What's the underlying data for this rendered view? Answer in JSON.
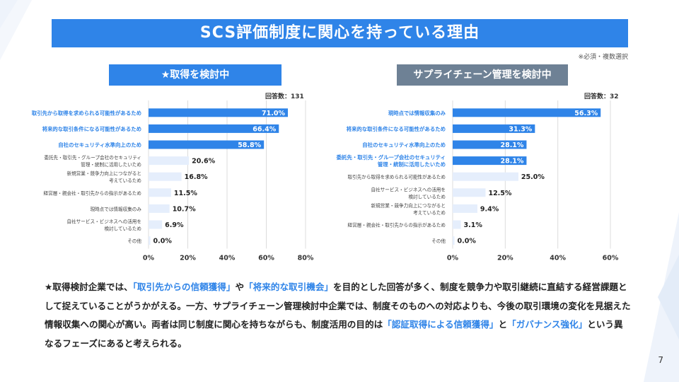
{
  "title": "SCS評価制度に関心を持っている理由",
  "note": "※必須・複数選択",
  "page_number": "7",
  "colors": {
    "accent": "#2f84e8",
    "light_bar": "#e5eefc",
    "grey_header": "#6e8195"
  },
  "chart_data": [
    {
      "type": "bar",
      "orientation": "horizontal",
      "header": "★取得を検討中",
      "respondents": "回答数：131",
      "categories": [
        "取引先から取得を求められる可能性があるため",
        "将来的な取引条件になる可能性があるため",
        "自社のセキュリティ水準向上のため",
        "委託先・取引先・グループ会社のセキュリティ管理・統制に活用したいため",
        "新規営業・競争力向上につながると考えているため",
        "経営層・親会社・取引先からの指示があるため",
        "現時点では情報収集のみ",
        "自社サービス・ビジネスへの活用を検討しているため",
        "その他"
      ],
      "category_lines": [
        [
          "取引先から取得を求められる可能性があるため"
        ],
        [
          "将来的な取引条件になる可能性があるため"
        ],
        [
          "自社のセキュリティ水準向上のため"
        ],
        [
          "委託先・取引先・グループ会社のセキュリティ",
          "管理・統制に活用したいため"
        ],
        [
          "新規営業・競争力向上につながると",
          "考えているため"
        ],
        [
          "経営層・親会社・取引先からの指示があるため"
        ],
        [
          "現時点では情報収集のみ"
        ],
        [
          "自社サービス・ビジネスへの活用を",
          "検討しているため"
        ],
        [
          "その他"
        ]
      ],
      "values": [
        71.0,
        66.4,
        58.8,
        20.6,
        16.8,
        11.5,
        10.7,
        6.9,
        0.0
      ],
      "value_labels": [
        "71.0%",
        "66.4%",
        "58.8%",
        "20.6%",
        "16.8%",
        "11.5%",
        "10.7%",
        "6.9%",
        "0.0%"
      ],
      "highlighted": [
        true,
        true,
        true,
        false,
        false,
        false,
        false,
        false,
        false
      ],
      "xlim": [
        0,
        80
      ],
      "ticks": [
        0,
        20,
        40,
        60,
        80
      ],
      "tick_labels": [
        "0%",
        "20%",
        "40%",
        "60%",
        "80%"
      ]
    },
    {
      "type": "bar",
      "orientation": "horizontal",
      "header": "サプライチェーン管理を検討中",
      "respondents": "回答数：32",
      "categories": [
        "現時点では情報収集のみ",
        "将来的な取引条件になる可能性があるため",
        "自社のセキュリティ水準向上のため",
        "委託先・取引先・グループ会社のセキュリティ管理・統制に活用したいため",
        "取引先から取得を求められる可能性があるため",
        "自社サービス・ビジネスへの活用を検討しているため",
        "新規営業・競争力向上につながると考えているため",
        "経営層・親会社・取引先からの指示があるため",
        "その他"
      ],
      "category_lines": [
        [
          "現時点では情報収集のみ"
        ],
        [
          "将来的な取引条件になる可能性があるため"
        ],
        [
          "自社のセキュリティ水準向上のため"
        ],
        [
          "委託先・取引先・グループ会社のセキュリティ",
          "管理・統制に活用したいため"
        ],
        [
          "取引先から取得を求められる可能性があるため"
        ],
        [
          "自社サービス・ビジネスへの活用を",
          "検討しているため"
        ],
        [
          "新規営業・競争力向上につながると",
          "考えているため"
        ],
        [
          "経営層・親会社・取引先からの指示があるため"
        ],
        [
          "その他"
        ]
      ],
      "values": [
        56.3,
        31.3,
        28.1,
        28.1,
        25.0,
        12.5,
        9.4,
        3.1,
        0.0
      ],
      "value_labels": [
        "56.3%",
        "31.3%",
        "28.1%",
        "28.1%",
        "25.0%",
        "12.5%",
        "9.4%",
        "3.1%",
        "0.0%"
      ],
      "highlighted": [
        true,
        true,
        true,
        true,
        false,
        false,
        false,
        false,
        false
      ],
      "xlim": [
        0,
        60
      ],
      "ticks": [
        0,
        20,
        40,
        60
      ],
      "tick_labels": [
        "0%",
        "20%",
        "40%",
        "60%"
      ]
    }
  ],
  "summary": {
    "parts": [
      {
        "text": "★取得検討企業では、",
        "hl": false
      },
      {
        "text": "「取引先からの信頼獲得」",
        "hl": true
      },
      {
        "text": "や",
        "hl": false
      },
      {
        "text": "「将来的な取引機会」",
        "hl": true
      },
      {
        "text": "を目的とした回答が多く、制度を競争力や取引継続に直結する経営課題として捉えていることがうかがえる。一方、サプライチェーン管理検討中企業では、制度そのものへの対応よりも、今後の取引環境の変化を見据えた情報収集への関心が高い。両者は同じ制度に関心を持ちながらも、制度活用の目的は",
        "hl": false
      },
      {
        "text": "「認証取得による信頼獲得」",
        "hl": true
      },
      {
        "text": "と",
        "hl": false
      },
      {
        "text": "「ガバナンス強化」",
        "hl": true
      },
      {
        "text": "という異なるフェーズにあると考えられる。",
        "hl": false
      }
    ]
  }
}
